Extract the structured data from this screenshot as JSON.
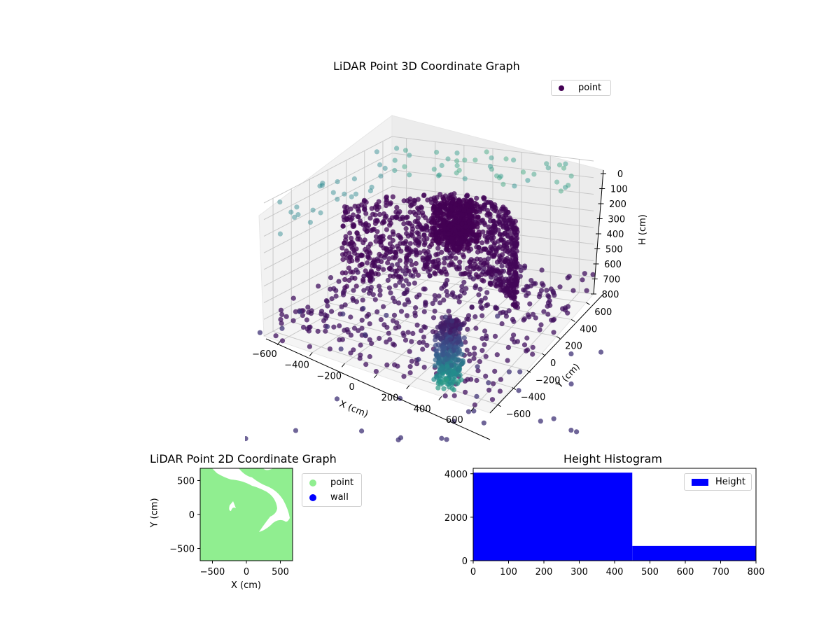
{
  "chart_data": [
    {
      "type": "scatter",
      "subtype": "3d",
      "title": "LiDAR Point 3D Coordinate Graph",
      "xlabel": "X (cm)",
      "ylabel": "Y (cm)",
      "zlabel": "H (cm)",
      "x_ticks": [
        "-600",
        "-400",
        "-200",
        "0",
        "200",
        "400",
        "600"
      ],
      "y_ticks": [
        "-600",
        "-400",
        "-200",
        "0",
        "200",
        "400",
        "600"
      ],
      "z_ticks": [
        "0",
        "100",
        "200",
        "300",
        "400",
        "500",
        "600",
        "700",
        "800"
      ],
      "zlim": [
        800,
        0
      ],
      "legend": [
        {
          "label": "point",
          "color": "#440154"
        }
      ],
      "legend_position": "upper right",
      "colormap": "viridis",
      "grid": true,
      "features": [
        "dense cluster near (X≈-100, Y≈400, H≈300)",
        "curved wall arc from (X≈-600, Y≈600) to (X≈600, Y≈-200), H 200-700",
        "vertical column near (X≈400, Y≈-500) spanning H 500-800",
        "sparse floor points H≈700-800",
        "light high points H≈0-100 along back walls"
      ]
    },
    {
      "type": "scatter",
      "title": "LiDAR Point 2D Coordinate Graph",
      "xlabel": "X (cm)",
      "ylabel": "Y (cm)",
      "x_ticks": [
        "-500",
        "0",
        "500"
      ],
      "y_ticks": [
        "-500",
        "0",
        "500"
      ],
      "xlim": [
        -680,
        680
      ],
      "ylim": [
        -680,
        680
      ],
      "legend": [
        {
          "label": "point",
          "color": "#90ee90"
        },
        {
          "label": "wall",
          "color": "#0000ff"
        }
      ],
      "legend_position": "outside right",
      "note": "area almost entirely filled with light-green points; white gaps form a curved channel from top (X≈-150..300, Y≈650) down to (X≈100, Y≈-250) and a small gap near (X≈-220, Y≈100)"
    },
    {
      "type": "bar",
      "subtype": "histogram",
      "title": "Height Histogram",
      "xlabel": "",
      "ylabel": "",
      "bins": [
        [
          0,
          450
        ],
        [
          450,
          800
        ]
      ],
      "values": [
        4050,
        680
      ],
      "x_ticks": [
        "0",
        "100",
        "200",
        "300",
        "400",
        "500",
        "600",
        "700",
        "800"
      ],
      "y_ticks": [
        "0",
        "2000",
        "4000"
      ],
      "xlim": [
        0,
        800
      ],
      "ylim": [
        0,
        4250
      ],
      "color": "#0000ff",
      "legend": [
        {
          "label": "Height",
          "color": "#0000ff"
        }
      ],
      "legend_position": "upper right"
    }
  ],
  "plot3d": {
    "title": "LiDAR Point 3D Coordinate Graph",
    "legend_label": "point",
    "legend_color": "#440154",
    "xlabel": "X (cm)",
    "ylabel": "Y (cm)",
    "zlabel": "H (cm)"
  },
  "plot2d": {
    "title": "LiDAR Point 2D Coordinate Graph",
    "xlabel": "X (cm)",
    "ylabel": "Y (cm)",
    "legend": [
      {
        "label": "point",
        "color": "#90ee90"
      },
      {
        "label": "wall",
        "color": "#0000ff"
      }
    ]
  },
  "hist": {
    "title": "Height Histogram",
    "legend_label": "Height",
    "color": "#0000ff"
  }
}
